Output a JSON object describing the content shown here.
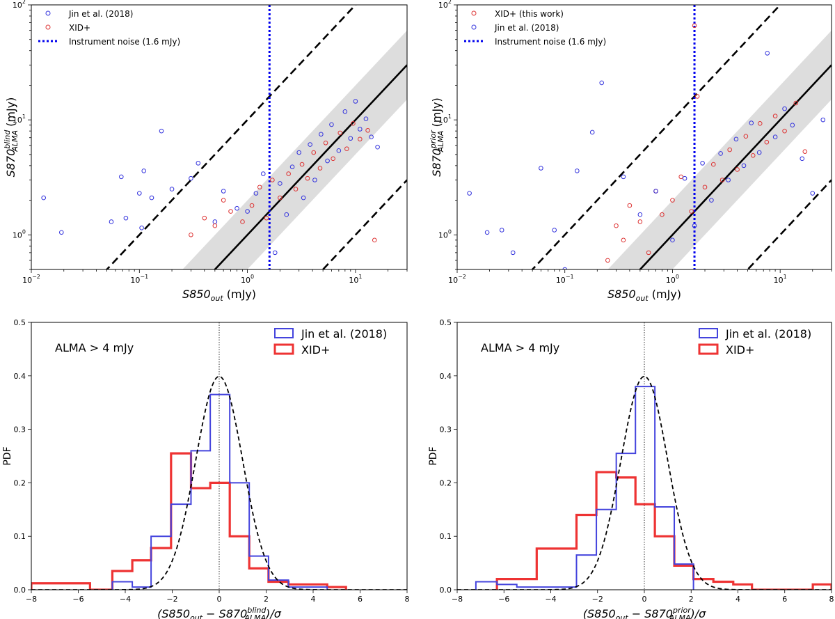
{
  "chart_data": [
    {
      "id": "scatter_blind",
      "type": "scatter",
      "xscale": "log",
      "yscale": "log",
      "xlim": [
        0.01,
        30
      ],
      "ylim": [
        0.5,
        100
      ],
      "x_ticks": [
        "10^-2",
        "10^-1",
        "10^0",
        "10^1"
      ],
      "y_ticks": [
        "10^0",
        "10^1",
        "10^2"
      ],
      "xlabel": {
        "base": "S850",
        "sub": "out",
        "sup": "",
        "unit": "(mJy)"
      },
      "ylabel": {
        "base": "S870",
        "sub": "ALMA",
        "sup": "blind",
        "unit": "(mJy)"
      },
      "legend": [
        "Jin et al. (2018)",
        "XID+",
        "Instrument noise (1.6 mJy)"
      ],
      "legend_colors": [
        "#3333dd",
        "#dd3333",
        "#0000ee"
      ],
      "noise_line_x": 1.6,
      "one_to_one_band_dex": 0.3,
      "offset_lines_factor": 10,
      "series": [
        {
          "name": "Jin et al. (2018)",
          "color": "#3333dd",
          "x": [
            0.013,
            0.019,
            0.055,
            0.068,
            0.075,
            0.1,
            0.105,
            0.11,
            0.13,
            0.16,
            0.2,
            0.3,
            0.35,
            0.5,
            0.6,
            0.8,
            1.0,
            1.2,
            1.4,
            1.8,
            2.0,
            2.3,
            2.6,
            3.0,
            3.3,
            3.8,
            4.2,
            4.8,
            5.5,
            6.0,
            7.0,
            8.0,
            9.0,
            10.0,
            11.0,
            12.5,
            14.0,
            16.0
          ],
          "y": [
            2.1,
            1.05,
            1.3,
            3.2,
            1.4,
            2.3,
            1.15,
            3.6,
            2.1,
            8.0,
            2.5,
            3.1,
            4.2,
            1.3,
            2.4,
            1.7,
            1.6,
            2.3,
            3.4,
            0.7,
            2.8,
            1.5,
            3.9,
            5.2,
            2.1,
            6.1,
            3.0,
            7.5,
            4.4,
            9.1,
            5.4,
            11.8,
            6.9,
            14.5,
            8.3,
            10.2,
            7.1,
            5.8
          ]
        },
        {
          "name": "XID+",
          "color": "#dd3333",
          "x": [
            0.3,
            0.4,
            0.5,
            0.6,
            0.7,
            0.9,
            1.1,
            1.3,
            1.5,
            1.7,
            2.0,
            2.4,
            2.8,
            3.2,
            3.6,
            4.1,
            4.7,
            5.3,
            6.2,
            7.2,
            8.3,
            9.5,
            11.0,
            13.0,
            15.0
          ],
          "y": [
            1.0,
            1.4,
            1.2,
            2.0,
            1.6,
            1.3,
            1.8,
            2.6,
            1.4,
            3.0,
            2.1,
            3.4,
            2.5,
            4.1,
            3.1,
            5.2,
            3.8,
            6.3,
            4.6,
            7.7,
            5.6,
            9.3,
            6.8,
            8.1,
            0.9
          ]
        }
      ]
    },
    {
      "id": "scatter_prior",
      "type": "scatter",
      "xscale": "log",
      "yscale": "log",
      "xlim": [
        0.01,
        30
      ],
      "ylim": [
        0.5,
        100
      ],
      "x_ticks": [
        "10^-2",
        "10^-1",
        "10^0",
        "10^1"
      ],
      "y_ticks": [
        "10^0",
        "10^1",
        "10^2"
      ],
      "xlabel": {
        "base": "S850",
        "sub": "out",
        "sup": "",
        "unit": "(mJy)"
      },
      "ylabel": {
        "base": "S870",
        "sub": "ALMA",
        "sup": "prior",
        "unit": "(mJy)"
      },
      "legend": [
        "XID+ (this work)",
        "Jin et al. (2018)",
        "Instrument noise (1.6 mJy)"
      ],
      "legend_colors": [
        "#dd3333",
        "#3333dd",
        "#0000ee"
      ],
      "noise_line_x": 1.6,
      "one_to_one_band_dex": 0.3,
      "offset_lines_factor": 10,
      "series": [
        {
          "name": "XID+ (this work)",
          "color": "#dd3333",
          "x": [
            0.25,
            0.3,
            0.35,
            0.4,
            0.5,
            0.6,
            0.7,
            0.8,
            1.0,
            1.2,
            1.5,
            1.6,
            1.7,
            2.0,
            2.4,
            2.9,
            3.4,
            4.0,
            4.8,
            5.6,
            6.5,
            7.5,
            9.0,
            11.0,
            14.0,
            17.0
          ],
          "y": [
            0.6,
            1.2,
            0.9,
            1.8,
            1.3,
            0.7,
            2.4,
            1.5,
            2.0,
            3.2,
            1.6,
            66.0,
            16.0,
            2.6,
            4.1,
            3.0,
            5.5,
            3.7,
            7.2,
            4.9,
            9.3,
            6.4,
            10.8,
            8.0,
            14.0,
            5.3
          ]
        },
        {
          "name": "Jin et al. (2018)",
          "color": "#3333dd",
          "x": [
            0.013,
            0.019,
            0.026,
            0.033,
            0.06,
            0.08,
            0.1,
            0.13,
            0.18,
            0.22,
            0.35,
            0.5,
            0.7,
            1.0,
            1.3,
            1.6,
            1.9,
            2.3,
            2.8,
            3.3,
            3.9,
            4.6,
            5.4,
            6.4,
            7.6,
            9.0,
            11.0,
            13.0,
            16.0,
            20.0,
            25.0
          ],
          "y": [
            2.3,
            1.05,
            1.1,
            0.7,
            3.8,
            1.1,
            0.5,
            3.6,
            7.8,
            21.0,
            3.2,
            1.5,
            2.4,
            0.9,
            3.1,
            1.2,
            4.2,
            2.0,
            5.1,
            3.0,
            6.8,
            4.0,
            9.4,
            5.2,
            38.0,
            7.1,
            12.5,
            9.0,
            4.6,
            2.3,
            10.0
          ]
        }
      ]
    },
    {
      "id": "hist_blind",
      "type": "histogram",
      "xlim": [
        -8,
        8
      ],
      "ylim": [
        0,
        0.5
      ],
      "x_ticks": [
        "-8",
        "-6",
        "-4",
        "-2",
        "0",
        "2",
        "4",
        "6",
        "8"
      ],
      "y_ticks": [
        "0.0",
        "0.1",
        "0.2",
        "0.3",
        "0.4",
        "0.5"
      ],
      "xlabel": {
        "num": "(S850",
        "num_sub": "out",
        "minus": " − S870",
        "sub": "ALMA",
        "sup": "blind",
        "tail": ")/σ"
      },
      "ylabel": "PDF",
      "annotation": "ALMA > 4 mJy",
      "legend": [
        "Jin et al. (2018)",
        "XID+"
      ],
      "gaussian_reference": {
        "mean": 0,
        "sigma": 1
      },
      "series": [
        {
          "name": "Jin et al. (2018)",
          "color": "#4444dd",
          "edges": [
            -4.55,
            -3.7,
            -2.9,
            -2.05,
            -1.2,
            -0.38,
            0.45,
            1.28,
            2.1,
            2.95,
            3.8,
            4.6
          ],
          "values": [
            0.015,
            0.005,
            0.1,
            0.16,
            0.26,
            0.365,
            0.2,
            0.063,
            0.018,
            0.005,
            0.005
          ]
        },
        {
          "name": "XID+",
          "color": "#ee3333",
          "edges": [
            -8.0,
            -5.5,
            -4.55,
            -3.7,
            -2.9,
            -2.05,
            -1.2,
            -0.38,
            0.45,
            1.28,
            2.1,
            2.95,
            3.8,
            4.6,
            5.4
          ],
          "values": [
            0.012,
            0.0,
            0.035,
            0.055,
            0.078,
            0.255,
            0.19,
            0.2,
            0.1,
            0.04,
            0.015,
            0.01,
            0.01,
            0.005
          ]
        }
      ]
    },
    {
      "id": "hist_prior",
      "type": "histogram",
      "xlim": [
        -8,
        8
      ],
      "ylim": [
        0,
        0.5
      ],
      "x_ticks": [
        "-8",
        "-6",
        "-4",
        "-2",
        "0",
        "2",
        "4",
        "6",
        "8"
      ],
      "y_ticks": [
        "0.0",
        "0.1",
        "0.2",
        "0.3",
        "0.4",
        "0.5"
      ],
      "xlabel": {
        "num": "(S850",
        "num_sub": "out",
        "minus": " − S870",
        "sub": "ALMA",
        "sup": "prior",
        "tail": ")/σ"
      },
      "ylabel": "PDF",
      "annotation": "ALMA > 4 mJy",
      "legend": [
        "Jin et al. (2018)",
        "XID+"
      ],
      "gaussian_reference": {
        "mean": 0,
        "sigma": 1
      },
      "series": [
        {
          "name": "Jin et al. (2018)",
          "color": "#4444dd",
          "edges": [
            -7.2,
            -6.3,
            -5.45,
            -4.6,
            -3.75,
            -2.9,
            -2.05,
            -1.2,
            -0.38,
            0.45,
            1.28,
            2.1
          ],
          "values": [
            0.015,
            0.01,
            0.005,
            0.005,
            0.005,
            0.065,
            0.15,
            0.255,
            0.38,
            0.155,
            0.048
          ]
        },
        {
          "name": "XID+",
          "color": "#ee3333",
          "edges": [
            -6.3,
            -5.45,
            -4.6,
            -3.75,
            -2.9,
            -2.05,
            -1.2,
            -0.38,
            0.45,
            1.28,
            2.1,
            2.95,
            3.8,
            4.6,
            5.45,
            6.3,
            7.2,
            8.0
          ],
          "values": [
            0.02,
            0.02,
            0.077,
            0.077,
            0.14,
            0.22,
            0.21,
            0.16,
            0.1,
            0.045,
            0.02,
            0.015,
            0.01,
            0.0,
            0.0,
            0.0,
            0.01
          ]
        }
      ]
    }
  ]
}
